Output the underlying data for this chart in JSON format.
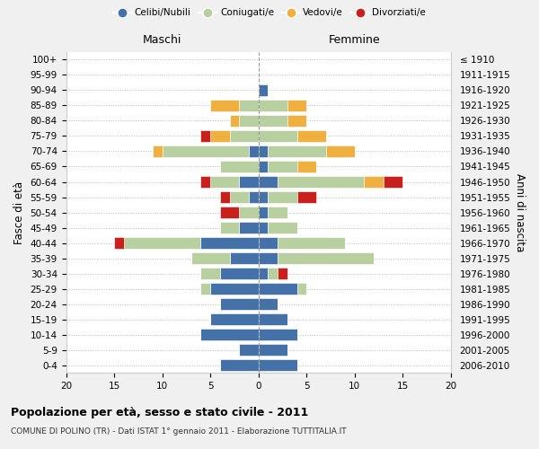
{
  "age_groups": [
    "0-4",
    "5-9",
    "10-14",
    "15-19",
    "20-24",
    "25-29",
    "30-34",
    "35-39",
    "40-44",
    "45-49",
    "50-54",
    "55-59",
    "60-64",
    "65-69",
    "70-74",
    "75-79",
    "80-84",
    "85-89",
    "90-94",
    "95-99",
    "100+"
  ],
  "birth_years": [
    "2006-2010",
    "2001-2005",
    "1996-2000",
    "1991-1995",
    "1986-1990",
    "1981-1985",
    "1976-1980",
    "1971-1975",
    "1966-1970",
    "1961-1965",
    "1956-1960",
    "1951-1955",
    "1946-1950",
    "1941-1945",
    "1936-1940",
    "1931-1935",
    "1926-1930",
    "1921-1925",
    "1916-1920",
    "1911-1915",
    "≤ 1910"
  ],
  "colors": {
    "celibi": "#4472a8",
    "coniugati": "#b8cfa0",
    "vedovi": "#f0b040",
    "divorziati": "#c8201c"
  },
  "maschi": {
    "celibi": [
      4,
      2,
      6,
      5,
      4,
      5,
      4,
      3,
      6,
      2,
      0,
      1,
      2,
      0,
      1,
      0,
      0,
      0,
      0,
      0,
      0
    ],
    "coniugati": [
      0,
      0,
      0,
      0,
      0,
      1,
      2,
      4,
      8,
      2,
      2,
      2,
      3,
      4,
      9,
      3,
      2,
      2,
      0,
      0,
      0
    ],
    "vedovi": [
      0,
      0,
      0,
      0,
      0,
      0,
      0,
      0,
      0,
      0,
      0,
      0,
      0,
      0,
      1,
      2,
      1,
      3,
      0,
      0,
      0
    ],
    "divorziati": [
      0,
      0,
      0,
      0,
      0,
      0,
      0,
      0,
      1,
      0,
      2,
      1,
      1,
      0,
      0,
      1,
      0,
      0,
      0,
      0,
      0
    ]
  },
  "femmine": {
    "celibi": [
      4,
      3,
      4,
      3,
      2,
      4,
      1,
      2,
      2,
      1,
      1,
      1,
      2,
      1,
      1,
      0,
      0,
      0,
      1,
      0,
      0
    ],
    "coniugati": [
      0,
      0,
      0,
      0,
      0,
      1,
      1,
      10,
      7,
      3,
      2,
      3,
      9,
      3,
      6,
      4,
      3,
      3,
      0,
      0,
      0
    ],
    "vedovi": [
      0,
      0,
      0,
      0,
      0,
      0,
      0,
      0,
      0,
      0,
      0,
      0,
      2,
      2,
      3,
      3,
      2,
      2,
      0,
      0,
      0
    ],
    "divorziati": [
      0,
      0,
      0,
      0,
      0,
      0,
      1,
      0,
      0,
      0,
      0,
      2,
      2,
      0,
      0,
      0,
      0,
      0,
      0,
      0,
      0
    ]
  },
  "xlim": [
    -20,
    20
  ],
  "xticks": [
    -20,
    -15,
    -10,
    -5,
    0,
    5,
    10,
    15,
    20
  ],
  "xtick_labels": [
    "20",
    "15",
    "10",
    "5",
    "0",
    "5",
    "10",
    "15",
    "20"
  ],
  "title": "Popolazione per età, sesso e stato civile - 2011",
  "subtitle": "COMUNE DI POLINO (TR) - Dati ISTAT 1° gennaio 2011 - Elaborazione TUTTITALIA.IT",
  "ylabel_left": "Fasce di età",
  "ylabel_right": "Anni di nascita",
  "label_maschi": "Maschi",
  "label_femmine": "Femmine",
  "legend_labels": [
    "Celibi/Nubili",
    "Coniugati/e",
    "Vedovi/e",
    "Divorziati/e"
  ],
  "bg_color": "#f0f0f0",
  "plot_bg": "#ffffff"
}
